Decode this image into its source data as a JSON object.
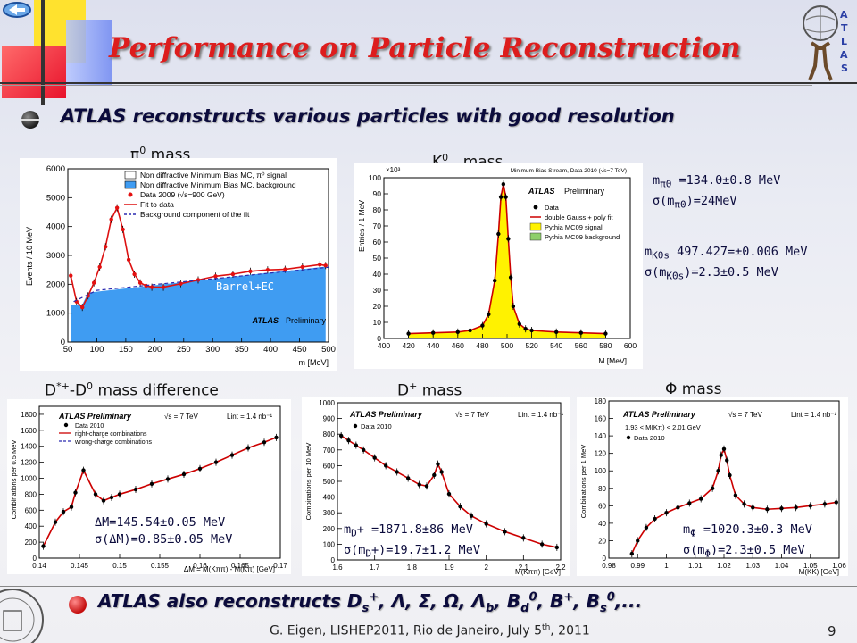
{
  "slide": {
    "title": "Performance on Particle Reconstruction",
    "bullet_1": "ATLAS reconstructs various particles with good resolution",
    "bullet_2_prefix": "ATLAS also reconstructs D",
    "bullet_2_rest": "Λ, Σ, Ω, Λ",
    "footer": "G. Eigen, LISHEP2011, Rio de Janeiro, July 5",
    "footer_year": ", 2011",
    "page_number": "9"
  },
  "panels": {
    "pi0": {
      "heading": "mass",
      "region_label": "Barrel+EC",
      "legend": [
        "Non diffractive Minimum Bias MC, π⁰ signal",
        "Non diffractive Minimum Bias MC, background",
        "Data 2009 (√s=900 GeV)",
        "Fit to data",
        "Background component of the fit"
      ],
      "xlabel": "m [MeV]",
      "ylabel": "Events / 10 MeV",
      "atlas_label": "ATLAS",
      "prelim": "Preliminary",
      "result_mass": "=134.0±0.8 MeV",
      "result_sigma": ")=24MeV"
    },
    "k0s": {
      "heading": "mass",
      "header_note": "Minimum Bias Stream, Data 2010 (√s=7 TeV)",
      "legend": [
        "Data",
        "double Gauss + poly fit",
        "Pythia MC09 signal",
        "Pythia MC09 background"
      ],
      "xlabel": "M [MeV]",
      "ylabel": "Entries / 1 MeV",
      "atlas_label": "ATLAS",
      "prelim": "Preliminary",
      "ymult": "×10³",
      "result_mass": " 497.427=±0.006 MeV",
      "result_sigma": ")=2.3±0.5 MeV"
    },
    "dstar": {
      "heading": "mass difference",
      "legend": [
        "Data 2010",
        "right-charge combinations",
        "wrong-charge combinations"
      ],
      "header_atlas": "ATLAS Preliminary",
      "header_sqrts": "√s = 7 TeV",
      "header_lumi": "L",
      "header_lumi_val": "= 1.4 nb",
      "xlabel": "ΔM = M(Kππ) - M(Kπ)  [GeV]",
      "ylabel": "Combinations per 0.5 MeV",
      "result_mass": "ΔM=145.54±0.05 MeV",
      "result_sigma": "σ(ΔM)=0.85±0.05 MeV"
    },
    "dplus": {
      "heading": "mass",
      "legend": [
        "Data 2010"
      ],
      "header_atlas": "ATLAS Preliminary",
      "header_sqrts": "√s = 7 TeV",
      "header_lumi": "L",
      "header_lumi_val": "= 1.4 nb",
      "xlabel": "M(Kππ) [GeV]",
      "ylabel": "Combinations per 10 MeV",
      "result_mass": "=1871.8±86 MeV",
      "result_sigma": ")=19.7±1.2 MeV"
    },
    "phi": {
      "heading": "Φ mass",
      "legend": [
        "1.93 < M(Kπ) < 2.01 GeV",
        "Data 2010"
      ],
      "header_atlas": "ATLAS Preliminary",
      "header_sqrts": "√s = 7 TeV",
      "header_lumi": "L",
      "header_lumi_val": "= 1.4 nb",
      "xlabel": "M(KK)  [GeV]",
      "ylabel": "Combinations per 1 MeV",
      "result_mass": "=1020.3±0.3 MeV",
      "result_sigma": ")=2.3±0.5 MeV"
    }
  },
  "chart_data": [
    {
      "type": "line",
      "title": "π0 mass",
      "xlabel": "m_γγ [MeV]",
      "ylabel": "Events / 10 MeV",
      "xlim": [
        50,
        500
      ],
      "ylim": [
        0,
        6000
      ],
      "xticks": [
        50,
        100,
        150,
        200,
        250,
        300,
        350,
        400,
        450,
        500
      ],
      "yticks": [
        0,
        1000,
        2000,
        3000,
        4000,
        5000,
        6000
      ],
      "series": [
        {
          "name": "Data 2009 (√s=900 GeV)",
          "x": [
            55,
            65,
            75,
            85,
            95,
            105,
            115,
            125,
            135,
            145,
            155,
            165,
            175,
            185,
            195,
            215,
            245,
            275,
            305,
            335,
            365,
            395,
            425,
            455,
            485,
            495
          ],
          "y": [
            2300,
            1400,
            1200,
            1600,
            2050,
            2600,
            3300,
            4250,
            4650,
            3900,
            2850,
            2350,
            2050,
            1950,
            1900,
            1900,
            2020,
            2150,
            2280,
            2350,
            2450,
            2500,
            2520,
            2600,
            2680,
            2650
          ]
        }
      ]
    },
    {
      "type": "line",
      "title": "K0s mass",
      "xlabel": "M_ππ [MeV]",
      "ylabel": "Entries / 1 MeV",
      "xlim": [
        400,
        600
      ],
      "ylim": [
        0,
        100
      ],
      "xticks": [
        400,
        420,
        440,
        460,
        480,
        500,
        520,
        540,
        560,
        580,
        600
      ],
      "yticks": [
        0,
        10,
        20,
        30,
        40,
        50,
        60,
        70,
        80,
        90,
        100
      ],
      "series": [
        {
          "name": "Data",
          "x": [
            420,
            440,
            460,
            470,
            480,
            485,
            490,
            493,
            495,
            497,
            499,
            501,
            503,
            505,
            510,
            515,
            520,
            540,
            560,
            580
          ],
          "y": [
            3,
            3.5,
            4,
            5,
            8,
            15,
            36,
            65,
            88,
            96,
            88,
            62,
            38,
            20,
            9,
            6,
            5,
            4,
            3.5,
            3
          ]
        }
      ]
    },
    {
      "type": "line",
      "title": "D*+-D0 mass difference",
      "xlabel": "ΔM = M(Kππ) - M(Kπ) [GeV]",
      "ylabel": "Combinations per 0.5 MeV",
      "xlim": [
        0.14,
        0.17
      ],
      "ylim": [
        0,
        1900
      ],
      "xticks": [
        0.14,
        0.145,
        0.15,
        0.155,
        0.16,
        0.165,
        0.17
      ],
      "yticks": [
        0,
        200,
        400,
        600,
        800,
        1000,
        1200,
        1400,
        1600,
        1800
      ],
      "series": [
        {
          "name": "right-charge combinations",
          "x": [
            0.1405,
            0.142,
            0.143,
            0.144,
            0.1445,
            0.1455,
            0.147,
            0.148,
            0.149,
            0.15,
            0.152,
            0.154,
            0.156,
            0.158,
            0.16,
            0.162,
            0.164,
            0.166,
            0.168,
            0.1695
          ],
          "y": [
            150,
            450,
            580,
            640,
            820,
            1100,
            800,
            720,
            760,
            800,
            860,
            930,
            990,
            1050,
            1120,
            1200,
            1290,
            1380,
            1450,
            1510
          ]
        }
      ]
    },
    {
      "type": "line",
      "title": "D+ mass",
      "xlabel": "M(Kππ) [GeV]",
      "ylabel": "Combinations per 10 MeV",
      "xlim": [
        1.6,
        2.2
      ],
      "ylim": [
        0,
        1000
      ],
      "xticks": [
        1.6,
        1.7,
        1.8,
        1.9,
        2.0,
        2.1,
        2.2
      ],
      "yticks": [
        0,
        100,
        200,
        300,
        400,
        500,
        600,
        700,
        800,
        900,
        1000
      ],
      "series": [
        {
          "name": "Data 2010",
          "x": [
            1.61,
            1.63,
            1.65,
            1.67,
            1.7,
            1.73,
            1.76,
            1.79,
            1.82,
            1.84,
            1.86,
            1.87,
            1.88,
            1.9,
            1.93,
            1.96,
            2.0,
            2.05,
            2.1,
            2.15,
            2.19
          ],
          "y": [
            790,
            760,
            730,
            700,
            650,
            600,
            560,
            520,
            480,
            470,
            540,
            610,
            560,
            420,
            340,
            280,
            230,
            180,
            140,
            100,
            80
          ]
        }
      ]
    },
    {
      "type": "line",
      "title": "Φ mass",
      "xlabel": "M(KK) [GeV]",
      "ylabel": "Combinations per 1 MeV",
      "xlim": [
        0.98,
        1.06
      ],
      "ylim": [
        0,
        180
      ],
      "xticks": [
        0.98,
        0.99,
        1.0,
        1.01,
        1.02,
        1.03,
        1.04,
        1.05,
        1.06
      ],
      "yticks": [
        0,
        20,
        40,
        60,
        80,
        100,
        120,
        140,
        160,
        180
      ],
      "series": [
        {
          "name": "Data 2010",
          "x": [
            0.988,
            0.99,
            0.993,
            0.996,
            1.0,
            1.004,
            1.008,
            1.012,
            1.016,
            1.018,
            1.019,
            1.02,
            1.021,
            1.022,
            1.024,
            1.027,
            1.03,
            1.035,
            1.04,
            1.045,
            1.05,
            1.055,
            1.059
          ],
          "y": [
            5,
            20,
            35,
            45,
            52,
            58,
            63,
            68,
            80,
            100,
            118,
            125,
            112,
            95,
            72,
            62,
            58,
            56,
            57,
            58,
            60,
            62,
            64
          ]
        }
      ]
    }
  ]
}
